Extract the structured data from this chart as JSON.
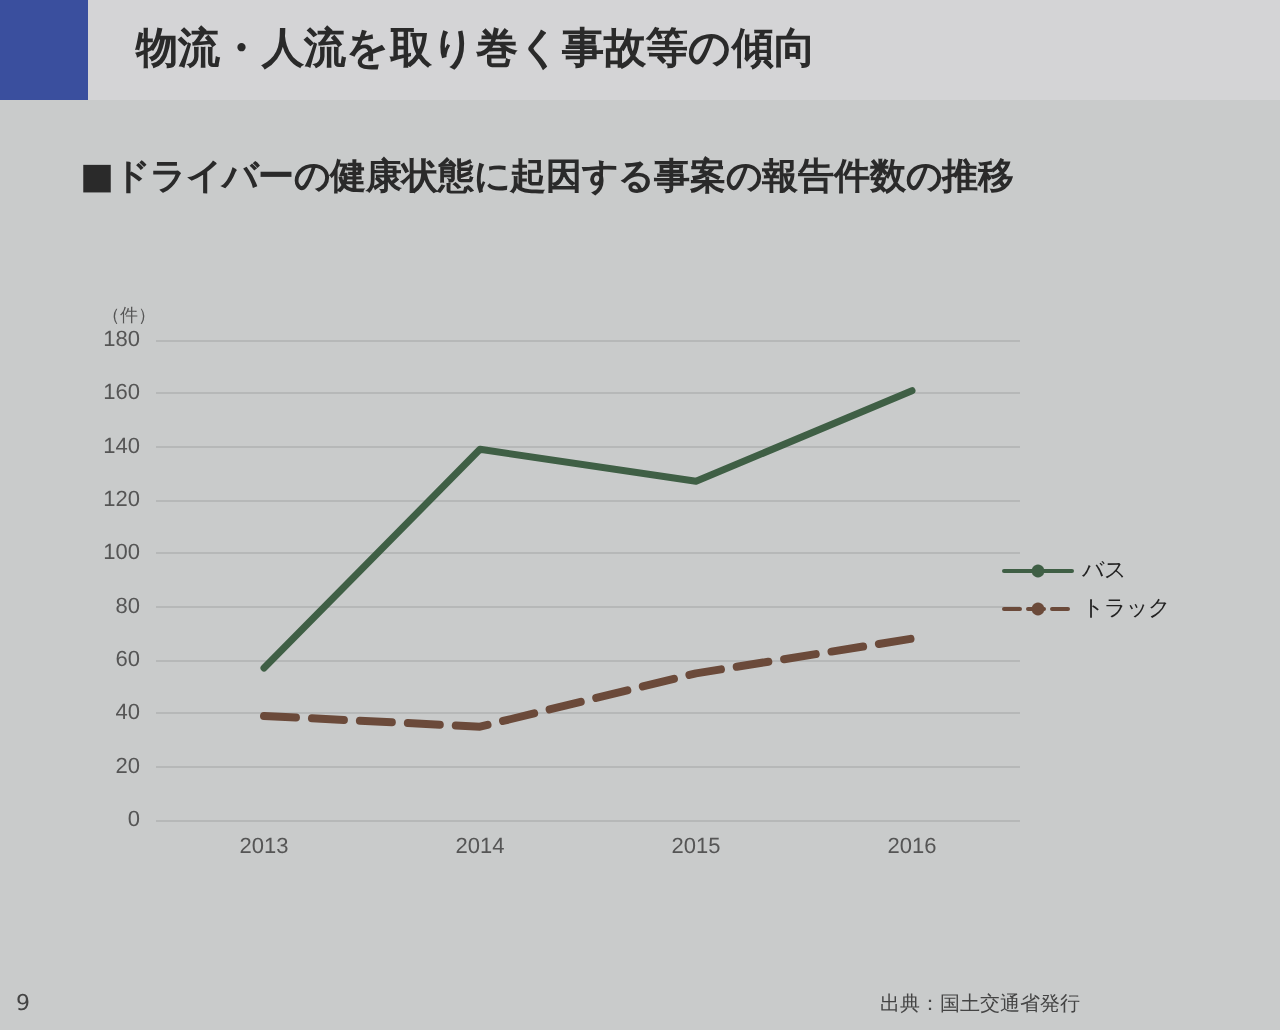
{
  "chart_data": {
    "type": "line",
    "title": "物流・人流を取り巻く事故等の傾向",
    "subtitle": "■ドライバーの健康状態に起因する事案の報告件数の推移",
    "ylabel": "（件）",
    "categories": [
      "2013",
      "2014",
      "2015",
      "2016"
    ],
    "series": [
      {
        "name": "バス",
        "color": "#3f5f45",
        "values": [
          57,
          139,
          127,
          161
        ],
        "line_style": "solid"
      },
      {
        "name": "トラック",
        "color": "#6b4a3a",
        "values": [
          39,
          35,
          55,
          68
        ],
        "line_style": "dashed"
      }
    ],
    "ylim": [
      0,
      180
    ],
    "yticks": [
      0,
      20,
      40,
      60,
      80,
      100,
      120,
      140,
      160,
      180
    ],
    "grid": "y",
    "legend": "right",
    "marker": "none",
    "annotations": [
      "出典：国土交通省発行",
      "9"
    ]
  }
}
